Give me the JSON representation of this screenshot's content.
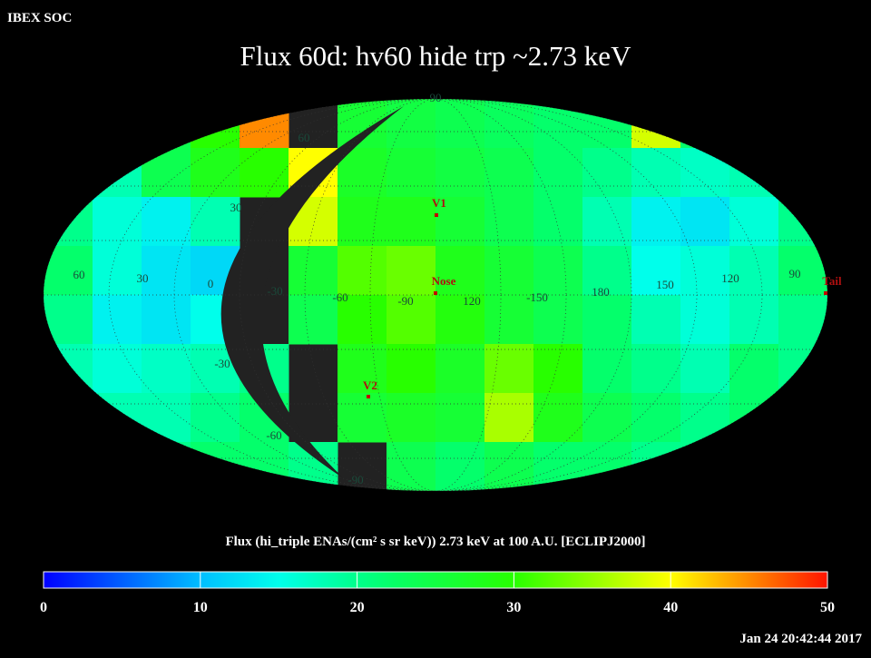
{
  "header": {
    "source": "IBEX SOC",
    "title": "Flux   60d: hv60 hide trp ~2.73 keV"
  },
  "map": {
    "grid_values": [
      [
        22,
        22,
        24,
        30,
        45,
        null,
        26,
        25,
        24,
        23,
        22,
        22,
        38,
        22,
        22,
        22
      ],
      [
        22,
        18,
        24,
        28,
        30,
        40,
        27,
        26,
        25,
        24,
        22,
        20,
        18,
        17,
        18,
        22
      ],
      [
        20,
        16,
        14,
        18,
        null,
        38,
        28,
        28,
        26,
        24,
        22,
        18,
        14,
        13,
        16,
        20
      ],
      [
        22,
        16,
        13,
        12,
        null,
        26,
        32,
        33,
        28,
        26,
        24,
        20,
        15,
        16,
        18,
        22
      ],
      [
        20,
        14,
        13,
        15,
        null,
        24,
        30,
        32,
        29,
        26,
        24,
        22,
        18,
        16,
        18,
        20
      ],
      [
        18,
        16,
        17,
        18,
        20,
        null,
        28,
        30,
        27,
        33,
        30,
        22,
        20,
        18,
        22,
        20
      ],
      [
        16,
        18,
        18,
        20,
        22,
        null,
        26,
        27,
        26,
        36,
        28,
        24,
        22,
        20,
        22,
        18
      ],
      [
        16,
        18,
        20,
        22,
        22,
        20,
        null,
        24,
        22,
        24,
        22,
        22,
        20,
        20,
        18,
        16
      ]
    ],
    "longitude_labels": [
      60,
      30,
      0,
      -30,
      -60,
      -90,
      120,
      -150,
      180,
      150,
      120,
      90
    ],
    "latitude_labels": [
      90,
      60,
      30,
      -30,
      -60,
      -90
    ],
    "markers": [
      "V1",
      "Nose",
      "V2",
      "Tail"
    ]
  },
  "colorbar": {
    "label": "Flux (hi_triple ENAs/(cm² s sr keV))  2.73 keV at 100 A.U. [ECLIPJ2000]",
    "range": [
      0,
      50
    ],
    "ticks": [
      0,
      10,
      20,
      30,
      40,
      50
    ]
  },
  "footer": {
    "timestamp": "Jan 24 20:42:44 2017"
  }
}
